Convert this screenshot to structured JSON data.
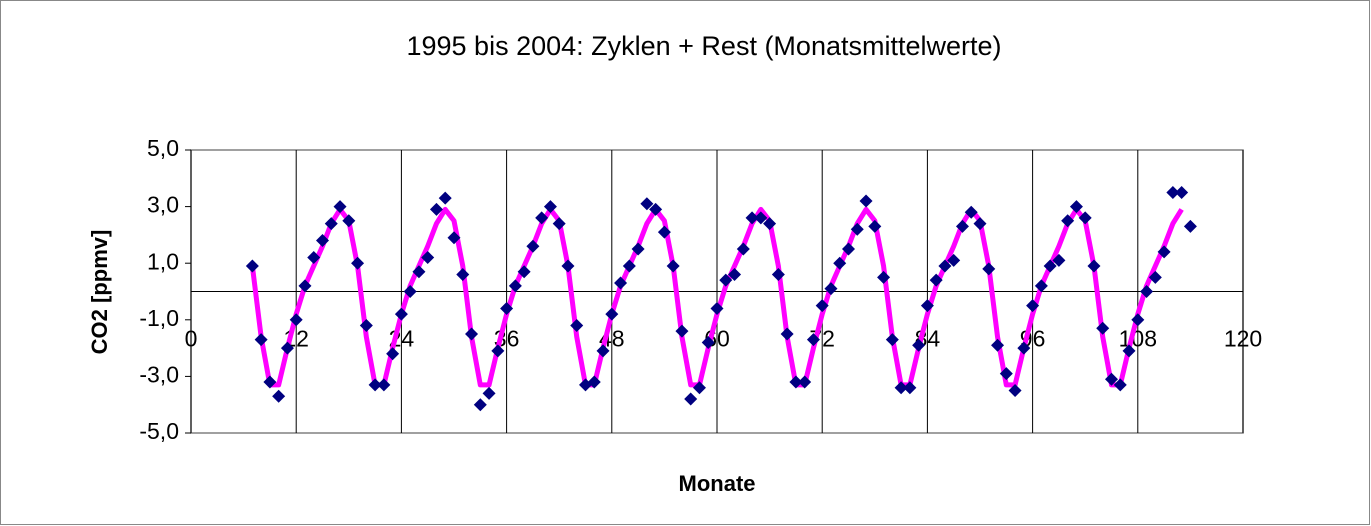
{
  "chart_data": {
    "type": "line",
    "title": "1995 bis 2004: Zyklen + Rest (Monatsmittelwerte)",
    "x_label": "Monate",
    "y_label": "CO2 [ppmv]",
    "x": [
      7,
      8,
      9,
      10,
      11,
      12,
      13,
      14,
      15,
      16,
      17,
      18,
      19,
      20,
      21,
      22,
      23,
      24,
      25,
      26,
      27,
      28,
      29,
      30,
      31,
      32,
      33,
      34,
      35,
      36,
      37,
      38,
      39,
      40,
      41,
      42,
      43,
      44,
      45,
      46,
      47,
      48,
      49,
      50,
      51,
      52,
      53,
      54,
      55,
      56,
      57,
      58,
      59,
      60,
      61,
      62,
      63,
      64,
      65,
      66,
      67,
      68,
      69,
      70,
      71,
      72,
      73,
      74,
      75,
      76,
      77,
      78,
      79,
      80,
      81,
      82,
      83,
      84,
      85,
      86,
      87,
      88,
      89,
      90,
      91,
      92,
      93,
      94,
      95,
      96,
      97,
      98,
      99,
      100,
      101,
      102,
      103,
      104,
      105,
      106,
      107,
      108,
      109,
      110,
      111,
      112,
      113,
      114
    ],
    "series": [
      {
        "color": "#ff00ff",
        "marker": "none",
        "values": [
          0.9,
          -1.6,
          -3.3,
          -3.3,
          -2.0,
          -0.8,
          0.2,
          0.9,
          1.6,
          2.4,
          2.9,
          2.5,
          0.9,
          -1.6,
          -3.3,
          -3.3,
          -2.0,
          -0.8,
          0.2,
          0.9,
          1.6,
          2.4,
          2.9,
          2.5,
          0.9,
          -1.6,
          -3.3,
          -3.3,
          -2.0,
          -0.8,
          0.2,
          0.9,
          1.6,
          2.4,
          2.9,
          2.5,
          0.9,
          -1.6,
          -3.3,
          -3.3,
          -2.0,
          -0.8,
          0.2,
          0.9,
          1.6,
          2.4,
          2.9,
          2.5,
          0.9,
          -1.6,
          -3.3,
          -3.3,
          -2.0,
          -0.8,
          0.2,
          0.9,
          1.6,
          2.4,
          2.9,
          2.5,
          0.9,
          -1.6,
          -3.3,
          -3.3,
          -2.0,
          -0.8,
          0.2,
          0.9,
          1.6,
          2.4,
          2.9,
          2.5,
          0.9,
          -1.6,
          -3.3,
          -3.3,
          -2.0,
          -0.8,
          0.2,
          0.9,
          1.6,
          2.4,
          2.9,
          2.5,
          0.9,
          -1.6,
          -3.3,
          -3.3,
          -2.0,
          -0.8,
          0.2,
          0.9,
          1.6,
          2.4,
          2.9,
          2.5,
          0.9,
          -1.6,
          -3.3,
          -3.3,
          -2.0,
          -0.8,
          0.2,
          0.9,
          1.6,
          2.4,
          2.9,
          null
        ]
      },
      {
        "color": "#000080",
        "marker": "diamond",
        "line": false,
        "values": [
          0.9,
          -1.7,
          -3.2,
          -3.7,
          -2.0,
          -1.0,
          0.2,
          1.2,
          1.8,
          2.4,
          3.0,
          2.5,
          1.0,
          -1.2,
          -3.3,
          -3.3,
          -2.2,
          -0.8,
          0.0,
          0.7,
          1.2,
          2.9,
          3.3,
          1.9,
          0.6,
          -1.5,
          -4.0,
          -3.6,
          -2.1,
          -0.6,
          0.2,
          0.7,
          1.6,
          2.6,
          3.0,
          2.4,
          0.9,
          -1.2,
          -3.3,
          -3.2,
          -2.1,
          -0.8,
          0.3,
          0.9,
          1.5,
          3.1,
          2.9,
          2.1,
          0.9,
          -1.4,
          -3.8,
          -3.4,
          -1.8,
          -0.6,
          0.4,
          0.6,
          1.5,
          2.6,
          2.6,
          2.4,
          0.6,
          -1.5,
          -3.2,
          -3.2,
          -1.7,
          -0.5,
          0.1,
          1.0,
          1.5,
          2.2,
          3.2,
          2.3,
          0.5,
          -1.7,
          -3.4,
          -3.4,
          -1.9,
          -0.5,
          0.4,
          0.9,
          1.1,
          2.3,
          2.8,
          2.4,
          0.8,
          -1.9,
          -2.9,
          -3.5,
          -2.0,
          -0.5,
          0.2,
          0.9,
          1.1,
          2.5,
          3.0,
          2.6,
          0.9,
          -1.3,
          -3.1,
          -3.3,
          -2.1,
          -1.0,
          0.0,
          0.5,
          1.4,
          3.5,
          3.5,
          2.3
        ]
      }
    ],
    "xlim": [
      0,
      120
    ],
    "xticks": [
      0,
      12,
      24,
      36,
      48,
      60,
      72,
      84,
      96,
      108,
      120
    ],
    "ylim": [
      -5,
      5
    ],
    "yticks": [
      {
        "value": -5,
        "label": "-5,0"
      },
      {
        "value": -3,
        "label": "-3,0"
      },
      {
        "value": -1,
        "label": "-1,0"
      },
      {
        "value": 1,
        "label": "1,0"
      },
      {
        "value": 3,
        "label": "3,0"
      },
      {
        "value": 5,
        "label": "5,0"
      }
    ],
    "grid": "x"
  }
}
